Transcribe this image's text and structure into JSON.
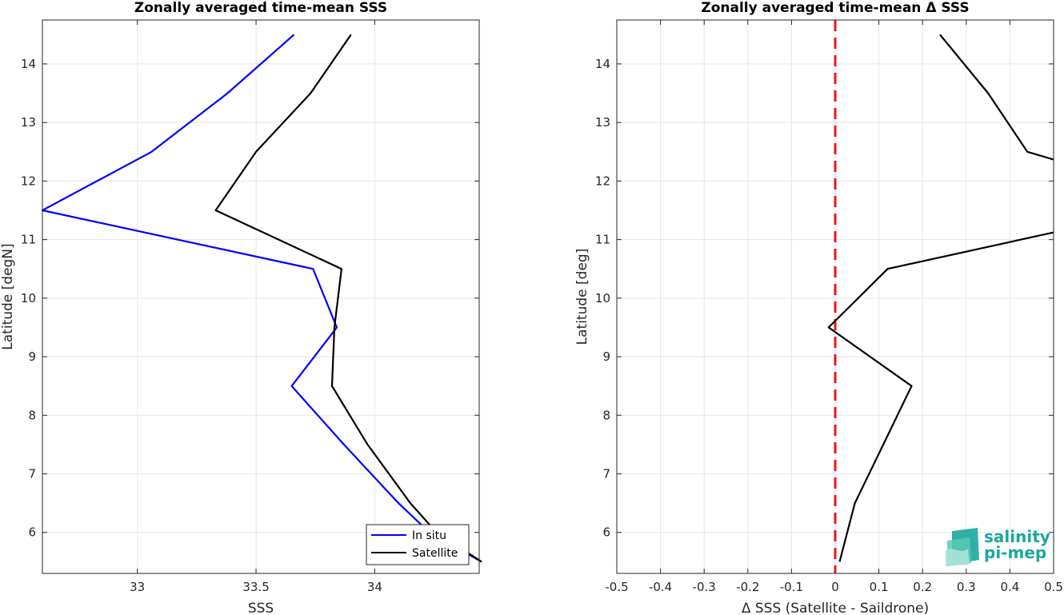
{
  "chart_data": [
    {
      "type": "line",
      "title": "Zonally averaged time-mean SSS",
      "xlabel": "SSS",
      "ylabel": "Latitude [degN]",
      "xlim": [
        32.6,
        34.44
      ],
      "ylim": [
        5.3,
        14.75
      ],
      "xticks": [
        33,
        33.5,
        34
      ],
      "xtick_labels": [
        "33",
        "33.5",
        "34"
      ],
      "yticks": [
        6,
        7,
        8,
        9,
        10,
        11,
        12,
        13,
        14
      ],
      "ytick_labels": [
        "6",
        "7",
        "8",
        "9",
        "10",
        "11",
        "12",
        "13",
        "14"
      ],
      "grid": true,
      "legend_position": "bottom-right",
      "series": [
        {
          "name": "In situ",
          "color": "#0000ff",
          "x": [
            34.45,
            34.23,
            34.1,
            33.87,
            33.65,
            33.84,
            33.74,
            32.6,
            33.06,
            33.38,
            33.66
          ],
          "y": [
            5.5,
            6.0,
            6.5,
            7.5,
            8.5,
            9.5,
            10.5,
            11.5,
            12.5,
            13.5,
            14.5
          ]
        },
        {
          "name": "Satellite",
          "color": "#000000",
          "x": [
            34.45,
            34.26,
            34.15,
            33.97,
            33.82,
            33.83,
            33.86,
            33.33,
            33.5,
            33.73,
            33.9
          ],
          "y": [
            5.5,
            6.0,
            6.5,
            7.5,
            8.5,
            9.5,
            10.5,
            11.5,
            12.5,
            13.5,
            14.5
          ]
        }
      ]
    },
    {
      "type": "line",
      "title": "Zonally averaged time-mean Δ SSS",
      "xlabel": "Δ SSS (Satellite - Saildrone)",
      "ylabel": "Latitude [deg]",
      "xlim": [
        -0.5,
        0.5
      ],
      "ylim": [
        5.3,
        14.75
      ],
      "xticks": [
        -0.5,
        -0.4,
        -0.3,
        -0.2,
        -0.1,
        0,
        0.1,
        0.2,
        0.3,
        0.4,
        0.5
      ],
      "xtick_labels": [
        "-0.5",
        "-0.4",
        "-0.3",
        "-0.2",
        "-0.1",
        "0",
        "0.1",
        "0.2",
        "0.3",
        "0.4",
        "0.5"
      ],
      "yticks": [
        6,
        7,
        8,
        9,
        10,
        11,
        12,
        13,
        14
      ],
      "ytick_labels": [
        "6",
        "7",
        "8",
        "9",
        "10",
        "11",
        "12",
        "13",
        "14"
      ],
      "grid": true,
      "reference_line": {
        "x": 0,
        "color": "#e41a1c",
        "style": "dashed"
      },
      "series": [
        {
          "color": "#000000",
          "x": [
            0.01,
            0.045,
            0.11,
            0.175,
            -0.015,
            0.12,
            0.73,
            0.53,
            0.44,
            0.35,
            0.24
          ],
          "y": [
            5.5,
            6.5,
            7.5,
            8.5,
            9.5,
            10.5,
            11.5,
            12.3,
            12.5,
            13.5,
            14.5
          ]
        }
      ]
    }
  ],
  "logo": {
    "line1": "salinity",
    "line2": "pi-mep",
    "color": "#1aa89a"
  }
}
